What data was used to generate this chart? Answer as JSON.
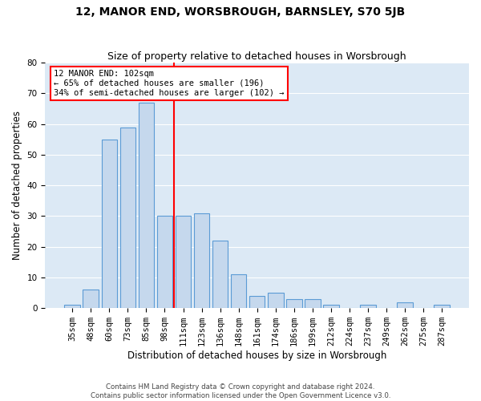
{
  "title": "12, MANOR END, WORSBROUGH, BARNSLEY, S70 5JB",
  "subtitle": "Size of property relative to detached houses in Worsbrough",
  "xlabel": "Distribution of detached houses by size in Worsbrough",
  "ylabel": "Number of detached properties",
  "footer1": "Contains HM Land Registry data © Crown copyright and database right 2024.",
  "footer2": "Contains public sector information licensed under the Open Government Licence v3.0.",
  "categories": [
    "35sqm",
    "48sqm",
    "60sqm",
    "73sqm",
    "85sqm",
    "98sqm",
    "111sqm",
    "123sqm",
    "136sqm",
    "148sqm",
    "161sqm",
    "174sqm",
    "186sqm",
    "199sqm",
    "212sqm",
    "224sqm",
    "237sqm",
    "249sqm",
    "262sqm",
    "275sqm",
    "287sqm"
  ],
  "values": [
    1,
    6,
    55,
    59,
    67,
    30,
    30,
    31,
    22,
    11,
    4,
    5,
    3,
    3,
    1,
    0,
    1,
    0,
    2,
    0,
    1
  ],
  "bar_color": "#c5d8ed",
  "bar_edge_color": "#5b9bd5",
  "annotation_text_line1": "12 MANOR END: 102sqm",
  "annotation_text_line2": "← 65% of detached houses are smaller (196)",
  "annotation_text_line3": "34% of semi-detached houses are larger (102) →",
  "annotation_box_color": "white",
  "annotation_box_edge_color": "red",
  "vline_x_idx": 5.5,
  "vline_color": "red",
  "ylim": [
    0,
    80
  ],
  "yticks": [
    0,
    10,
    20,
    30,
    40,
    50,
    60,
    70,
    80
  ],
  "background_color": "#dce9f5",
  "title_fontsize": 10,
  "subtitle_fontsize": 9,
  "tick_fontsize": 7.5,
  "xlabel_fontsize": 8.5,
  "ylabel_fontsize": 8.5,
  "annotation_fontsize": 7.5
}
